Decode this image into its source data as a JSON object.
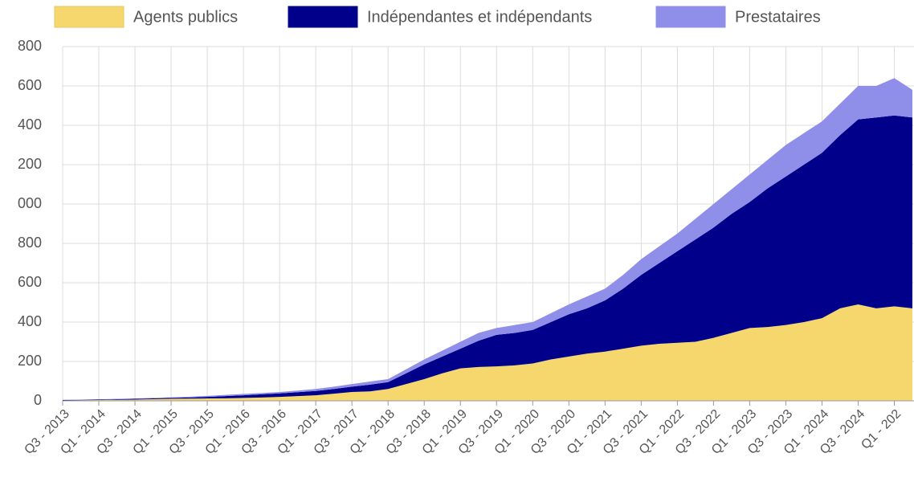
{
  "chart_data": {
    "type": "stacked-area",
    "categories": [
      "Q3 - 2013",
      null,
      "Q1 - 2014",
      null,
      "Q3 - 2014",
      null,
      "Q1 - 2015",
      null,
      "Q3 - 2015",
      null,
      "Q1 - 2016",
      null,
      "Q3 - 2016",
      null,
      "Q1 - 2017",
      null,
      "Q3 - 2017",
      null,
      "Q1 - 2018",
      null,
      "Q3 - 2018",
      null,
      "Q1 - 2019",
      null,
      "Q3 - 2019",
      null,
      "Q1 - 2020",
      null,
      "Q3 - 2020",
      null,
      "Q1 - 2021",
      null,
      "Q3 - 2021",
      null,
      "Q1 - 2022",
      null,
      "Q3 - 2022",
      null,
      "Q1 - 2023",
      null,
      "Q3 - 2023",
      null,
      "Q1 - 2024",
      null,
      "Q3 - 2024",
      null,
      "Q1 - 202",
      null
    ],
    "series": [
      {
        "name": "Agents publics",
        "color": "#f5d76e",
        "values": [
          2,
          3,
          4,
          5,
          6,
          8,
          10,
          11,
          12,
          13,
          15,
          17,
          20,
          24,
          28,
          36,
          45,
          48,
          60,
          85,
          110,
          140,
          165,
          172,
          175,
          180,
          190,
          210,
          225,
          240,
          250,
          265,
          280,
          290,
          295,
          300,
          320,
          345,
          370,
          375,
          385,
          400,
          420,
          470,
          490,
          470,
          480,
          470
        ]
      },
      {
        "name": "Indépendantes et indépendants",
        "color": "#00008b",
        "values": [
          2,
          2,
          2,
          3,
          4,
          4,
          5,
          6,
          8,
          11,
          13,
          16,
          18,
          20,
          22,
          24,
          27,
          34,
          35,
          55,
          75,
          85,
          100,
          133,
          160,
          165,
          170,
          190,
          215,
          230,
          260,
          305,
          360,
          410,
          465,
          520,
          560,
          605,
          640,
          705,
          755,
          800,
          840,
          880,
          940,
          970,
          970,
          970
        ]
      },
      {
        "name": "Prestataires",
        "color": "#8f8ee8",
        "values": [
          1,
          1,
          2,
          2,
          2,
          3,
          3,
          4,
          5,
          6,
          7,
          7,
          7,
          8,
          10,
          12,
          13,
          16,
          15,
          20,
          25,
          30,
          35,
          40,
          35,
          40,
          40,
          45,
          50,
          60,
          60,
          70,
          80,
          85,
          90,
          105,
          120,
          125,
          140,
          145,
          160,
          160,
          160,
          160,
          170,
          160,
          190,
          140
        ]
      }
    ],
    "ylim": [
      0,
      1800
    ],
    "yticks": [
      0,
      200,
      400,
      600,
      800,
      {
        "value": 1000,
        "label": "000"
      },
      {
        "value": 1200,
        "label": "200"
      },
      {
        "value": 1400,
        "label": "400"
      },
      {
        "value": 1600,
        "label": "600"
      },
      {
        "value": 1800,
        "label": "800"
      }
    ],
    "grid": true,
    "legend": "top"
  }
}
